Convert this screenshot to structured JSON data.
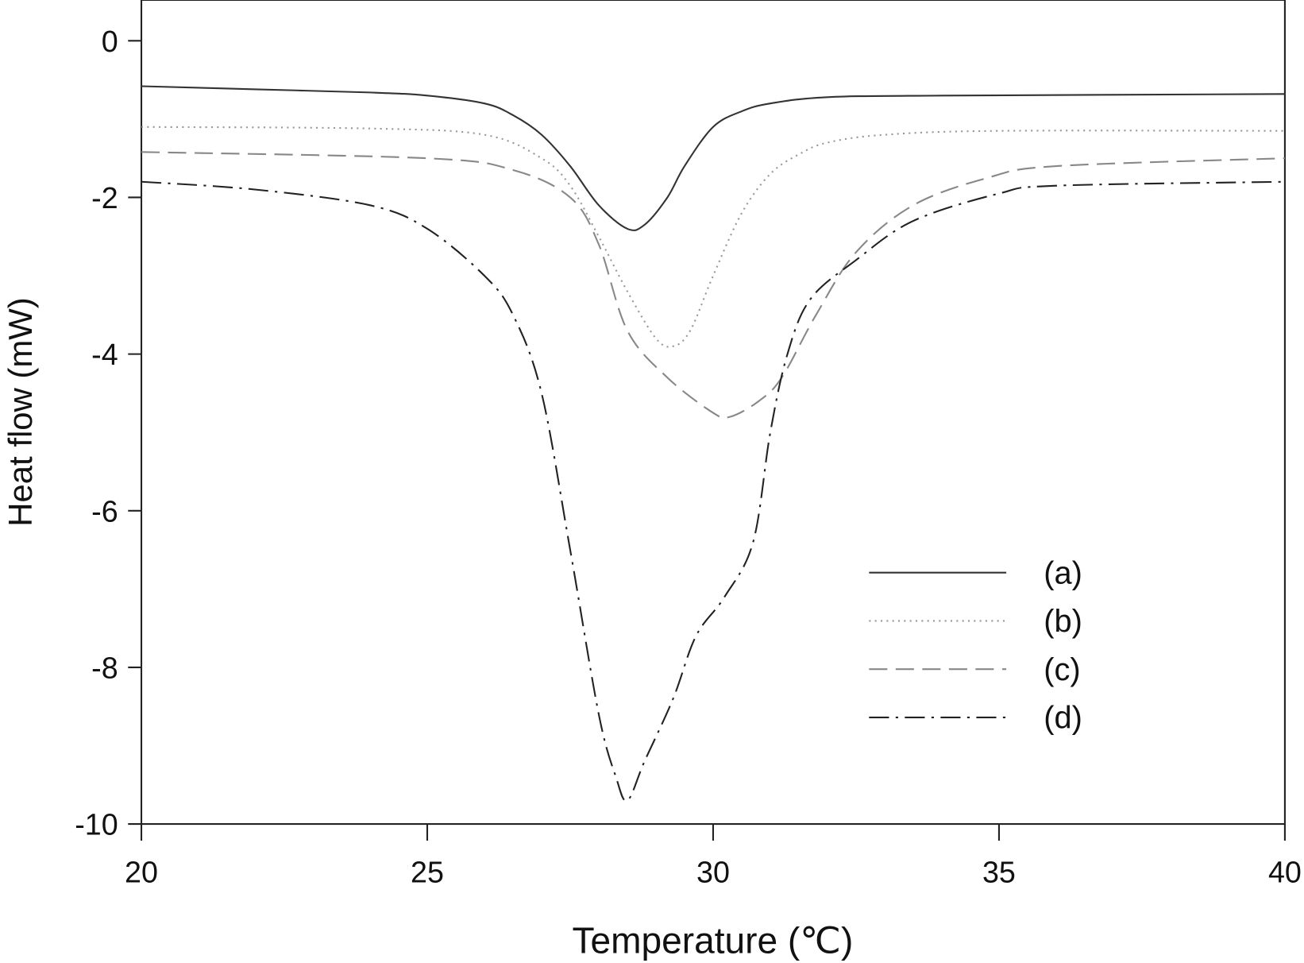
{
  "chart_data": {
    "type": "line",
    "title": "",
    "xlabel": "Temperature (℃)",
    "ylabel": "Heat flow (mW)",
    "xlim": [
      20,
      40
    ],
    "ylim": [
      -10,
      0.5
    ],
    "xticks": [
      "20",
      "25",
      "30",
      "35",
      "40"
    ],
    "yticks": [
      "0",
      "-2",
      "-4",
      "-6",
      "-8",
      "-10"
    ],
    "grid": false,
    "legend_position": "lower-right",
    "series": [
      {
        "name": "(a)",
        "style": "solid",
        "color": "#333333",
        "x": [
          20,
          22,
          24,
          25,
          26,
          26.5,
          27,
          27.5,
          28,
          28.5,
          28.8,
          29.2,
          29.5,
          30,
          30.5,
          31,
          32,
          34,
          40
        ],
        "y": [
          -0.58,
          -0.62,
          -0.66,
          -0.7,
          -0.8,
          -0.95,
          -1.2,
          -1.6,
          -2.1,
          -2.4,
          -2.35,
          -2.0,
          -1.6,
          -1.1,
          -0.9,
          -0.8,
          -0.72,
          -0.7,
          -0.68
        ]
      },
      {
        "name": "(b)",
        "style": "dotted",
        "color": "#999999",
        "x": [
          20,
          24,
          26,
          27,
          27.5,
          28,
          28.5,
          29,
          29.3,
          29.6,
          30,
          30.5,
          31,
          31.5,
          32,
          33,
          35,
          40
        ],
        "y": [
          -1.1,
          -1.12,
          -1.2,
          -1.5,
          -1.85,
          -2.5,
          -3.2,
          -3.8,
          -3.9,
          -3.7,
          -3.0,
          -2.2,
          -1.7,
          -1.45,
          -1.3,
          -1.2,
          -1.15,
          -1.15
        ]
      },
      {
        "name": "(c)",
        "style": "dashed",
        "color": "#888888",
        "x": [
          20,
          25,
          26.5,
          27.5,
          28,
          28.5,
          29.2,
          30,
          30.3,
          30.8,
          31.2,
          31.8,
          32.5,
          33.5,
          34.8,
          36,
          40
        ],
        "y": [
          -1.42,
          -1.5,
          -1.65,
          -2.0,
          -2.6,
          -3.7,
          -4.3,
          -4.75,
          -4.8,
          -4.6,
          -4.3,
          -3.5,
          -2.7,
          -2.1,
          -1.75,
          -1.6,
          -1.5
        ]
      },
      {
        "name": "(d)",
        "style": "dash-dot",
        "color": "#222222",
        "x": [
          20,
          22,
          24,
          25,
          26,
          26.5,
          27,
          27.5,
          28,
          28.3,
          28.5,
          28.8,
          29.3,
          29.7,
          30.2,
          30.7,
          31,
          31.3,
          31.7,
          32.5,
          33.5,
          35,
          36,
          40
        ],
        "y": [
          -1.8,
          -1.9,
          -2.1,
          -2.4,
          -3.0,
          -3.5,
          -4.5,
          -6.5,
          -8.6,
          -9.4,
          -9.7,
          -9.2,
          -8.4,
          -7.6,
          -7.1,
          -6.4,
          -5.0,
          -4.0,
          -3.3,
          -2.8,
          -2.3,
          -1.95,
          -1.85,
          -1.8
        ]
      }
    ]
  }
}
